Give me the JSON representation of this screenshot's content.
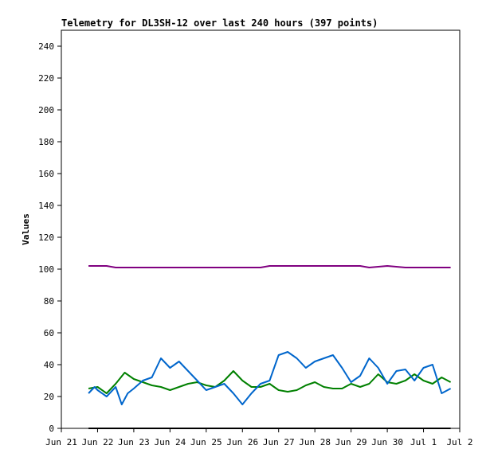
{
  "chart_data": {
    "type": "line",
    "title": "Telemetry for DL3SH-12 over last 240 hours (397 points)",
    "ylabel": "Values",
    "xlabel": "",
    "ylim": [
      0,
      250
    ],
    "yticks": [
      0,
      20,
      40,
      60,
      80,
      100,
      120,
      140,
      160,
      180,
      200,
      220,
      240
    ],
    "x_range": [
      "2023-06-21",
      "2023-07-02"
    ],
    "xticks": [
      "Jun 21",
      "Jun 22",
      "Jun 23",
      "Jun 24",
      "Jun 25",
      "Jun 26",
      "Jun 27",
      "Jun 28",
      "Jun 29",
      "Jun 30",
      "Jul 1",
      "Jul 2"
    ],
    "grid": false,
    "series": [
      {
        "color": "#800080",
        "x": [
          "2023-06-21T18:00",
          "2023-06-22T06:00",
          "2023-06-22T12:00",
          "2023-06-23T12:00",
          "2023-06-24T12:00",
          "2023-06-25T12:00",
          "2023-06-26T12:00",
          "2023-06-26T18:00",
          "2023-06-27T12:00",
          "2023-06-28T12:00",
          "2023-06-29T06:00",
          "2023-06-29T12:00",
          "2023-06-30T00:00",
          "2023-06-30T12:00",
          "2023-07-01T12:00",
          "2023-07-01T18:00"
        ],
        "y": [
          102,
          102,
          101,
          101,
          101,
          101,
          101,
          102,
          102,
          102,
          102,
          101,
          102,
          101,
          101,
          101
        ]
      },
      {
        "color": "#008000",
        "x": [
          "2023-06-21T18:00",
          "2023-06-22T00:00",
          "2023-06-22T06:00",
          "2023-06-22T12:00",
          "2023-06-22T18:00",
          "2023-06-23T00:00",
          "2023-06-23T06:00",
          "2023-06-23T12:00",
          "2023-06-23T18:00",
          "2023-06-24T00:00",
          "2023-06-24T06:00",
          "2023-06-24T12:00",
          "2023-06-24T18:00",
          "2023-06-25T00:00",
          "2023-06-25T06:00",
          "2023-06-25T12:00",
          "2023-06-25T18:00",
          "2023-06-26T00:00",
          "2023-06-26T06:00",
          "2023-06-26T12:00",
          "2023-06-26T18:00",
          "2023-06-27T00:00",
          "2023-06-27T06:00",
          "2023-06-27T12:00",
          "2023-06-27T18:00",
          "2023-06-28T00:00",
          "2023-06-28T06:00",
          "2023-06-28T12:00",
          "2023-06-28T18:00",
          "2023-06-29T00:00",
          "2023-06-29T06:00",
          "2023-06-29T12:00",
          "2023-06-29T18:00",
          "2023-06-30T00:00",
          "2023-06-30T06:00",
          "2023-06-30T12:00",
          "2023-06-30T18:00",
          "2023-07-01T00:00",
          "2023-07-01T06:00",
          "2023-07-01T12:00",
          "2023-07-01T18:00"
        ],
        "y": [
          25,
          26,
          22,
          28,
          35,
          31,
          29,
          27,
          26,
          24,
          26,
          28,
          29,
          27,
          26,
          30,
          36,
          30,
          26,
          26,
          28,
          24,
          23,
          24,
          27,
          29,
          26,
          25,
          25,
          28,
          26,
          28,
          34,
          29,
          28,
          30,
          34,
          30,
          28,
          32,
          29
        ]
      },
      {
        "color": "#0066cc",
        "x": [
          "2023-06-21T18:00",
          "2023-06-21T22:00",
          "2023-06-22T00:00",
          "2023-06-22T06:00",
          "2023-06-22T12:00",
          "2023-06-22T16:00",
          "2023-06-22T20:00",
          "2023-06-23T00:00",
          "2023-06-23T06:00",
          "2023-06-23T12:00",
          "2023-06-23T18:00",
          "2023-06-24T00:00",
          "2023-06-24T06:00",
          "2023-06-24T12:00",
          "2023-06-24T18:00",
          "2023-06-25T00:00",
          "2023-06-25T06:00",
          "2023-06-25T12:00",
          "2023-06-25T18:00",
          "2023-06-26T00:00",
          "2023-06-26T06:00",
          "2023-06-26T12:00",
          "2023-06-26T18:00",
          "2023-06-27T00:00",
          "2023-06-27T06:00",
          "2023-06-27T12:00",
          "2023-06-27T18:00",
          "2023-06-28T00:00",
          "2023-06-28T06:00",
          "2023-06-28T12:00",
          "2023-06-28T18:00",
          "2023-06-29T00:00",
          "2023-06-29T06:00",
          "2023-06-29T12:00",
          "2023-06-29T18:00",
          "2023-06-30T00:00",
          "2023-06-30T06:00",
          "2023-06-30T12:00",
          "2023-06-30T18:00",
          "2023-07-01T00:00",
          "2023-07-01T06:00",
          "2023-07-01T12:00",
          "2023-07-01T18:00"
        ],
        "y": [
          22,
          26,
          24,
          20,
          26,
          15,
          22,
          25,
          30,
          32,
          44,
          38,
          42,
          36,
          30,
          24,
          26,
          28,
          22,
          15,
          22,
          28,
          30,
          46,
          48,
          44,
          38,
          42,
          44,
          46,
          38,
          29,
          33,
          44,
          38,
          28,
          36,
          37,
          30,
          38,
          40,
          22,
          25
        ]
      },
      {
        "color": "#000000",
        "x": [
          "2023-06-21T18:00",
          "2023-07-01T18:00"
        ],
        "y": [
          0,
          0
        ]
      }
    ]
  }
}
